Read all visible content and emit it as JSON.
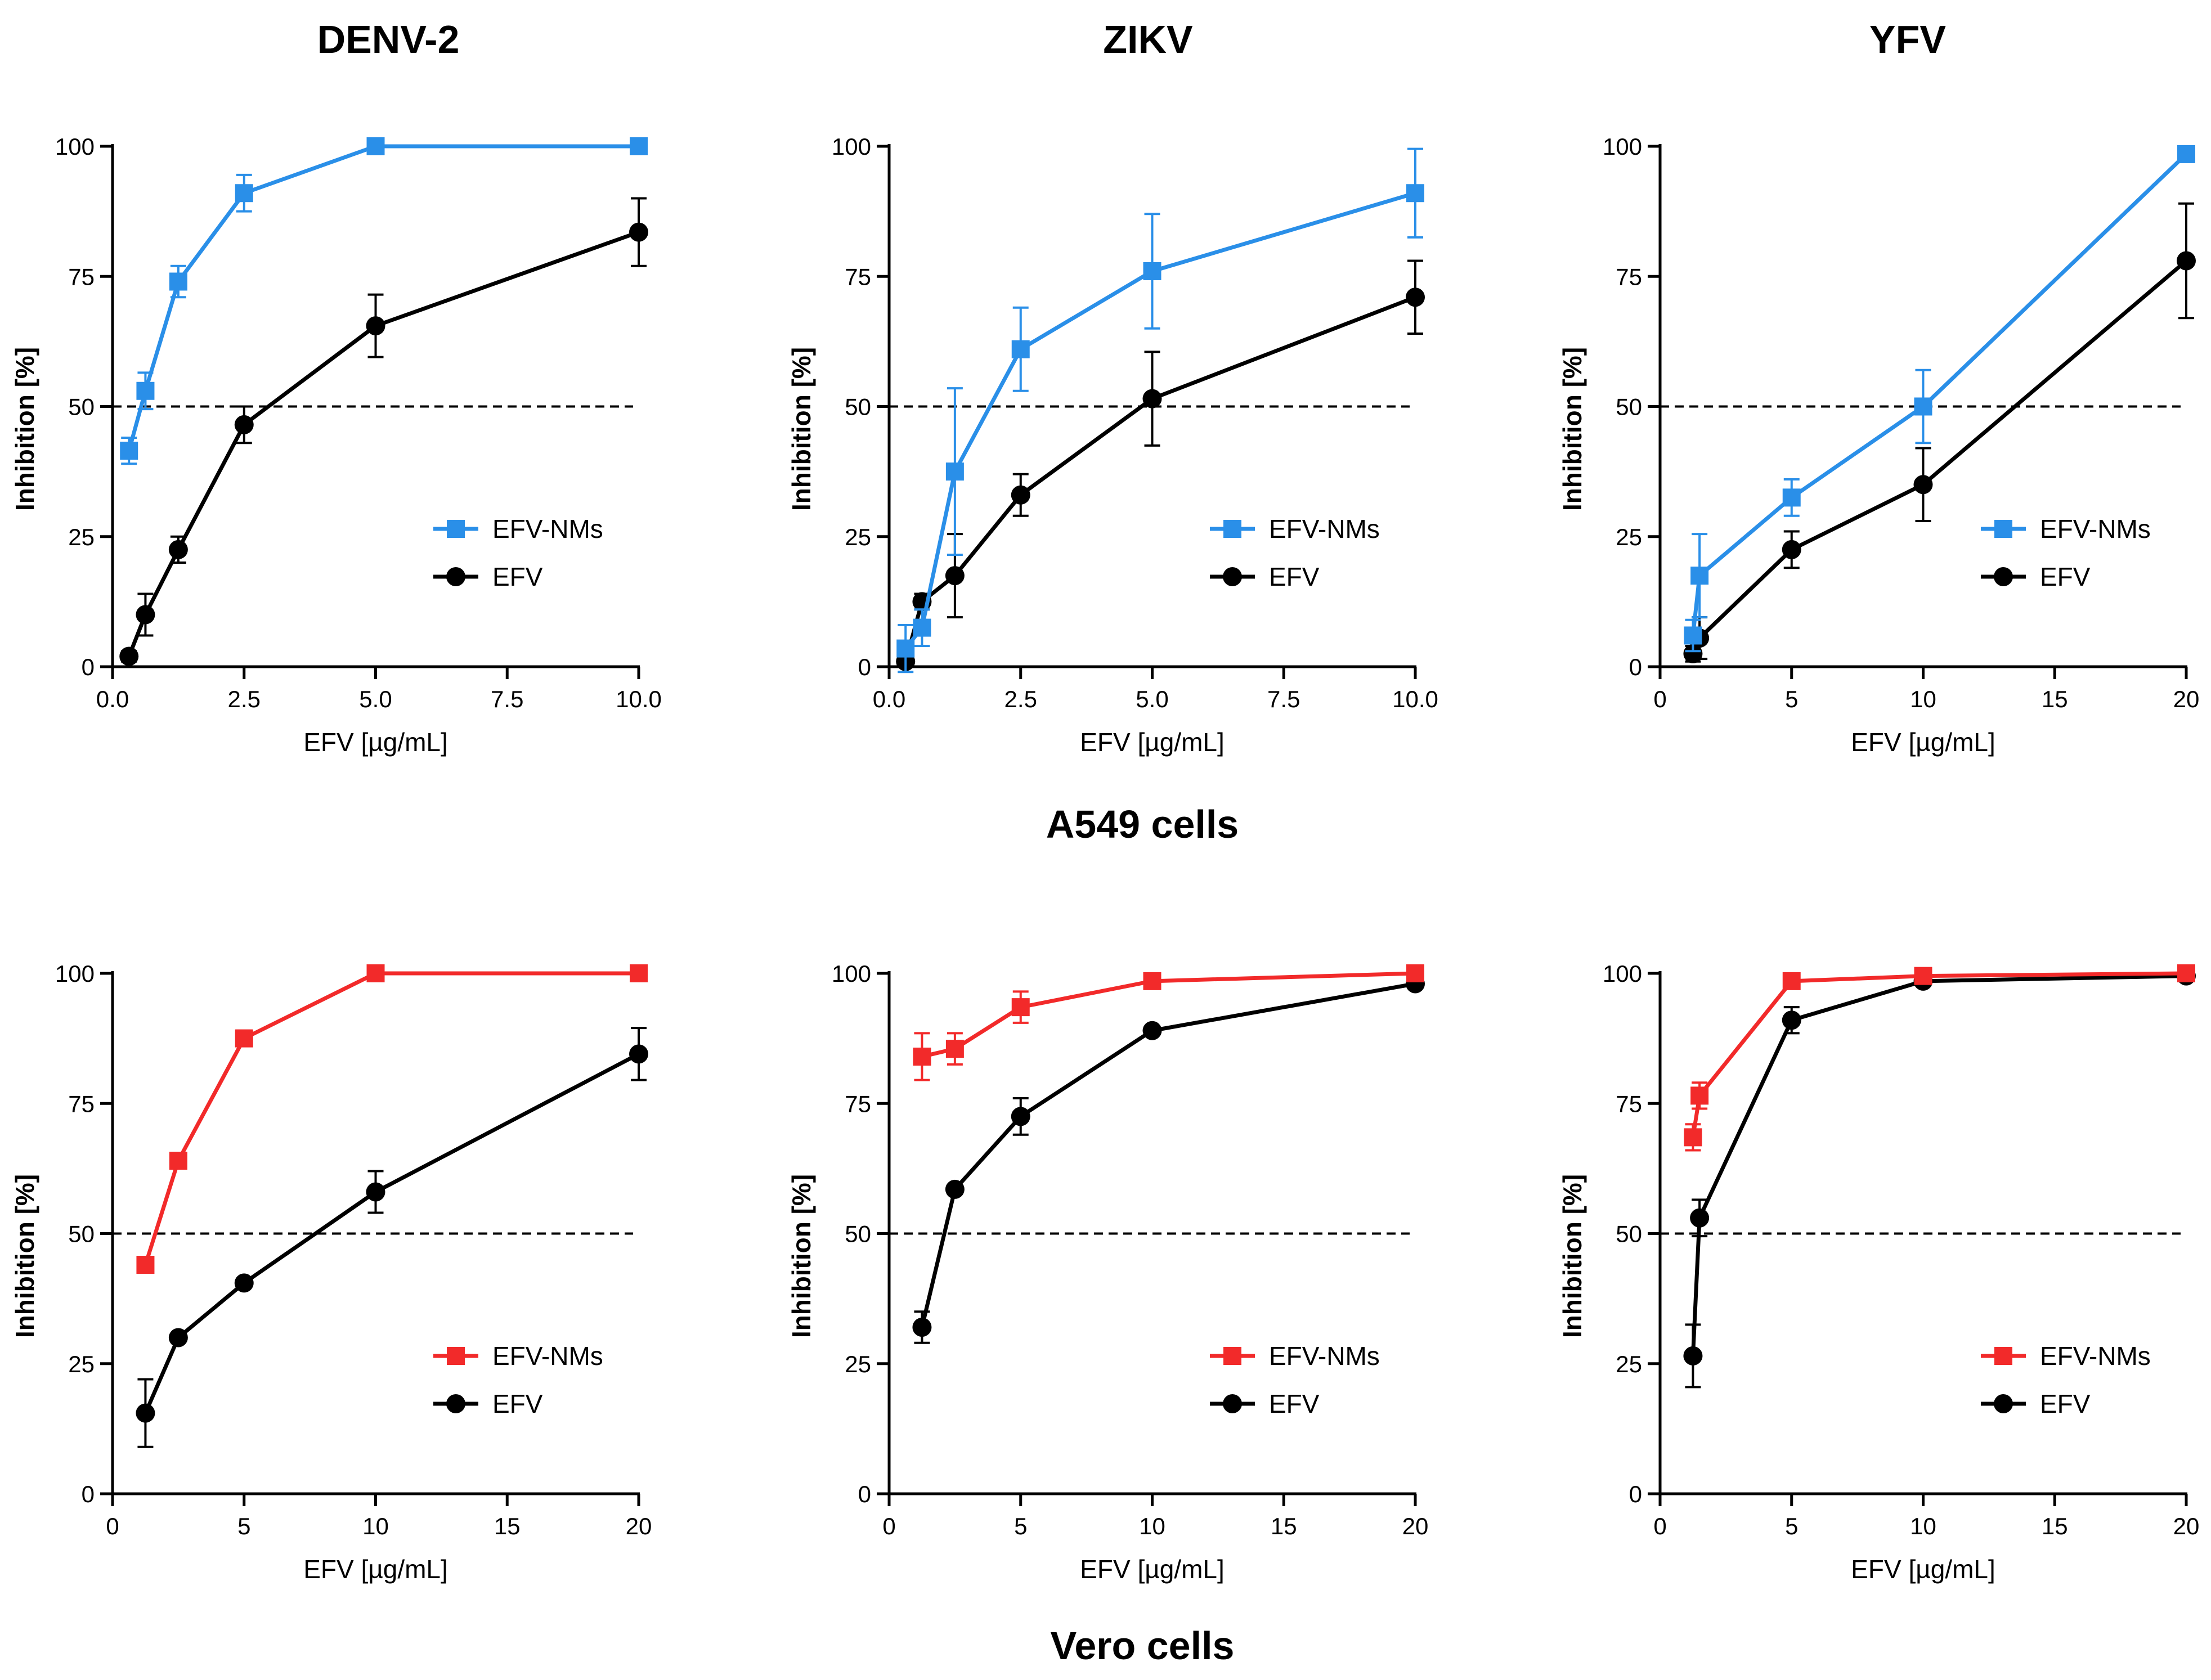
{
  "figure": {
    "column_titles": [
      "DENV-2",
      "ZIKV",
      "YFV"
    ],
    "row_titles": [
      "A549 cells",
      "Vero cells"
    ]
  },
  "colors": {
    "a549_nm": "#2a8fe8",
    "vero_nm": "#f22a2a",
    "efv": "#000000",
    "reference_line": "#000000"
  },
  "chart_data": [
    {
      "id": "a549-denv2",
      "type": "line",
      "title": "DENV-2",
      "xlabel": "EFV [µg/mL]",
      "ylabel": "Inhibition [%]",
      "xlim": [
        0,
        10
      ],
      "ylim": [
        0,
        100
      ],
      "xticks": [
        0,
        2.5,
        5,
        7.5,
        10
      ],
      "xtick_labels": [
        "0.0",
        "2.5",
        "5.0",
        "7.5",
        "10.0"
      ],
      "yticks": [
        0,
        25,
        50,
        75,
        100
      ],
      "ytick_labels": [
        "0",
        "25",
        "50",
        "75",
        "100"
      ],
      "reference_line": 50,
      "legend_position": "right",
      "series": [
        {
          "name": "EFV-NMs",
          "marker": "square",
          "color_key": "a549_nm",
          "x": [
            0.3125,
            0.625,
            1.25,
            2.5,
            5,
            10
          ],
          "y": [
            41.5,
            53,
            74,
            91,
            100,
            100
          ],
          "err": [
            2.5,
            3.5,
            3,
            3.5,
            0,
            0
          ]
        },
        {
          "name": "EFV",
          "marker": "circle",
          "color_key": "efv",
          "x": [
            0.3125,
            0.625,
            1.25,
            2.5,
            5,
            10
          ],
          "y": [
            2,
            10,
            22.5,
            46.5,
            65.5,
            83.5
          ],
          "err": [
            1,
            4,
            2.5,
            3.5,
            6,
            6.5
          ]
        }
      ]
    },
    {
      "id": "a549-zikv",
      "type": "line",
      "title": "ZIKV",
      "xlabel": "EFV [µg/mL]",
      "ylabel": "Inhibition [%]",
      "xlim": [
        0,
        10
      ],
      "ylim": [
        0,
        100
      ],
      "xticks": [
        0,
        2.5,
        5,
        7.5,
        10
      ],
      "xtick_labels": [
        "0.0",
        "2.5",
        "5.0",
        "7.5",
        "10.0"
      ],
      "yticks": [
        0,
        25,
        50,
        75,
        100
      ],
      "ytick_labels": [
        "0",
        "25",
        "50",
        "75",
        "100"
      ],
      "reference_line": 50,
      "legend_position": "right",
      "series": [
        {
          "name": "EFV-NMs",
          "marker": "square",
          "color_key": "a549_nm",
          "x": [
            0.3125,
            0.625,
            1.25,
            2.5,
            5,
            10
          ],
          "y": [
            3.5,
            7.5,
            37.5,
            61,
            76,
            91
          ],
          "err": [
            4.5,
            3.5,
            16,
            8,
            11,
            8.5
          ]
        },
        {
          "name": "EFV",
          "marker": "circle",
          "color_key": "efv",
          "x": [
            0.3125,
            0.625,
            1.25,
            2.5,
            5,
            10
          ],
          "y": [
            1,
            12.5,
            17.5,
            33,
            51.5,
            71
          ],
          "err": [
            1,
            1.5,
            8,
            4,
            9,
            7
          ]
        }
      ]
    },
    {
      "id": "a549-yfv",
      "type": "line",
      "title": "YFV",
      "xlabel": "EFV [µg/mL]",
      "ylabel": "Inhibition [%]",
      "xlim": [
        0,
        20
      ],
      "ylim": [
        0,
        100
      ],
      "xticks": [
        0,
        5,
        10,
        15,
        20
      ],
      "xtick_labels": [
        "0",
        "5",
        "10",
        "15",
        "20"
      ],
      "yticks": [
        0,
        25,
        50,
        75,
        100
      ],
      "ytick_labels": [
        "0",
        "25",
        "50",
        "75",
        "100"
      ],
      "reference_line": 50,
      "legend_position": "right",
      "series": [
        {
          "name": "EFV-NMs",
          "marker": "square",
          "color_key": "a549_nm",
          "x": [
            1.25,
            1.5,
            5,
            10,
            20
          ],
          "y": [
            6,
            17.5,
            32.5,
            50,
            98.5
          ],
          "err": [
            3,
            8,
            3.5,
            7,
            1.5
          ]
        },
        {
          "name": "EFV",
          "marker": "circle",
          "color_key": "efv",
          "x": [
            1.25,
            1.5,
            5,
            10,
            20
          ],
          "y": [
            2.5,
            5.5,
            22.5,
            35,
            78
          ],
          "err": [
            1.5,
            4,
            3.5,
            7,
            11
          ]
        }
      ]
    },
    {
      "id": "vero-denv2",
      "type": "line",
      "title": "DENV-2",
      "xlabel": "EFV [µg/mL]",
      "ylabel": "Inhibition [%]",
      "xlim": [
        0,
        20
      ],
      "ylim": [
        0,
        100
      ],
      "xticks": [
        0,
        5,
        10,
        15,
        20
      ],
      "xtick_labels": [
        "0",
        "5",
        "10",
        "15",
        "20"
      ],
      "yticks": [
        0,
        25,
        50,
        75,
        100
      ],
      "ytick_labels": [
        "0",
        "25",
        "50",
        "75",
        "100"
      ],
      "reference_line": 50,
      "legend_position": "right",
      "series": [
        {
          "name": "EFV-NMs",
          "marker": "square",
          "color_key": "vero_nm",
          "x": [
            1.25,
            2.5,
            5,
            10,
            20
          ],
          "y": [
            44,
            64,
            87.5,
            100,
            100
          ],
          "err": [
            0,
            0,
            1.5,
            0,
            0
          ]
        },
        {
          "name": "EFV",
          "marker": "circle",
          "color_key": "efv",
          "x": [
            1.25,
            2.5,
            5,
            10,
            20
          ],
          "y": [
            15.5,
            30,
            40.5,
            58,
            84.5
          ],
          "err": [
            6.5,
            0,
            0,
            4,
            5
          ]
        }
      ]
    },
    {
      "id": "vero-zikv",
      "type": "line",
      "title": "ZIKV",
      "xlabel": "EFV [µg/mL]",
      "ylabel": "Inhibition [%]",
      "xlim": [
        0,
        20
      ],
      "ylim": [
        0,
        100
      ],
      "xticks": [
        0,
        5,
        10,
        15,
        20
      ],
      "xtick_labels": [
        "0",
        "5",
        "10",
        "15",
        "20"
      ],
      "yticks": [
        0,
        25,
        50,
        75,
        100
      ],
      "ytick_labels": [
        "0",
        "25",
        "50",
        "75",
        "100"
      ],
      "reference_line": 50,
      "legend_position": "right",
      "series": [
        {
          "name": "EFV-NMs",
          "marker": "square",
          "color_key": "vero_nm",
          "x": [
            1.25,
            2.5,
            5,
            10,
            20
          ],
          "y": [
            84,
            85.5,
            93.5,
            98.5,
            100
          ],
          "err": [
            4.5,
            3,
            3,
            1,
            0
          ]
        },
        {
          "name": "EFV",
          "marker": "circle",
          "color_key": "efv",
          "x": [
            1.25,
            2.5,
            5,
            10,
            20
          ],
          "y": [
            32,
            58.5,
            72.5,
            89,
            98
          ],
          "err": [
            3,
            0,
            3.5,
            0,
            0
          ]
        }
      ]
    },
    {
      "id": "vero-yfv",
      "type": "line",
      "title": "YFV",
      "xlabel": "EFV [µg/mL]",
      "ylabel": "Inhibition [%]",
      "xlim": [
        0,
        20
      ],
      "ylim": [
        0,
        100
      ],
      "xticks": [
        0,
        5,
        10,
        15,
        20
      ],
      "xtick_labels": [
        "0",
        "5",
        "10",
        "15",
        "20"
      ],
      "yticks": [
        0,
        25,
        50,
        75,
        100
      ],
      "ytick_labels": [
        "0",
        "25",
        "50",
        "75",
        "100"
      ],
      "reference_line": 50,
      "legend_position": "right",
      "series": [
        {
          "name": "EFV-NMs",
          "marker": "square",
          "color_key": "vero_nm",
          "x": [
            1.25,
            1.5,
            5,
            10,
            20
          ],
          "y": [
            68.5,
            76.5,
            98.5,
            99.5,
            100
          ],
          "err": [
            2.5,
            2.5,
            1,
            0.5,
            0
          ]
        },
        {
          "name": "EFV",
          "marker": "circle",
          "color_key": "efv",
          "x": [
            1.25,
            1.5,
            5,
            10,
            20
          ],
          "y": [
            26.5,
            53,
            91,
            98.5,
            99.5
          ],
          "err": [
            6,
            3.5,
            2.5,
            0,
            0
          ]
        }
      ]
    }
  ]
}
